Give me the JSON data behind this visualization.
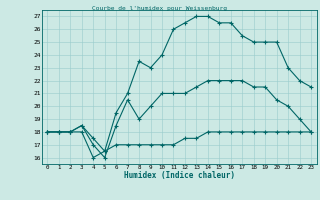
{
  "title": "Courbe de l'humidex pour Weissenburg",
  "xlabel": "Humidex (Indice chaleur)",
  "bg_color": "#cce9e4",
  "line_color": "#006666",
  "grid_color": "#99cccc",
  "xlim": [
    -0.5,
    23.5
  ],
  "ylim": [
    15.5,
    27.5
  ],
  "xticks": [
    0,
    1,
    2,
    3,
    4,
    5,
    6,
    7,
    8,
    9,
    10,
    11,
    12,
    13,
    14,
    15,
    16,
    17,
    18,
    19,
    20,
    21,
    22,
    23
  ],
  "yticks": [
    16,
    17,
    18,
    19,
    20,
    21,
    22,
    23,
    24,
    25,
    26,
    27
  ],
  "line1_x": [
    0,
    1,
    2,
    3,
    4,
    5,
    6,
    7,
    8,
    9,
    10,
    11,
    12,
    13,
    14,
    15,
    16,
    17,
    18,
    19,
    20,
    21,
    22,
    23
  ],
  "line1_y": [
    18,
    18,
    18,
    18,
    16,
    16.5,
    17,
    17,
    17,
    17,
    17,
    17,
    17.5,
    17.5,
    18,
    18,
    18,
    18,
    18,
    18,
    18,
    18,
    18,
    18
  ],
  "line2_x": [
    0,
    1,
    2,
    3,
    4,
    5,
    6,
    7,
    8,
    9,
    10,
    11,
    12,
    13,
    14,
    15,
    16,
    17,
    18,
    19,
    20,
    21,
    22,
    23
  ],
  "line2_y": [
    18,
    18,
    18,
    18.5,
    17,
    16,
    18.5,
    20.5,
    19,
    20,
    21,
    21,
    21,
    21.5,
    22,
    22,
    22,
    22,
    21.5,
    21.5,
    20.5,
    20,
    19,
    18
  ],
  "line3_x": [
    0,
    1,
    2,
    3,
    4,
    5,
    6,
    7,
    8,
    9,
    10,
    11,
    12,
    13,
    14,
    15,
    16,
    17,
    18,
    19,
    20,
    21,
    22,
    23
  ],
  "line3_y": [
    18,
    18,
    18,
    18.5,
    17.5,
    16.5,
    19.5,
    21,
    23.5,
    23,
    24,
    26,
    26.5,
    27,
    27,
    26.5,
    26.5,
    25.5,
    25,
    25,
    25,
    23,
    22,
    21.5
  ]
}
